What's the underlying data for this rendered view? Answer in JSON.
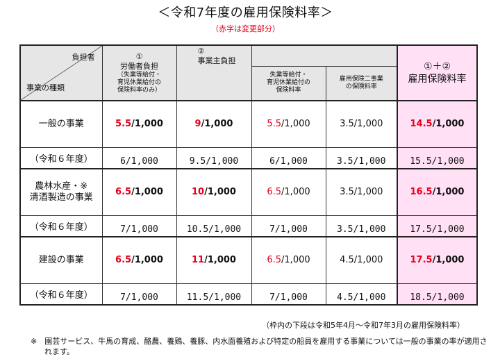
{
  "title": "＜令和7年度の雇用保険料率＞",
  "subtitle": "（赤字は変更部分）",
  "colors": {
    "accent_red": "#e6001c",
    "header_gray": "#e6e6e6",
    "total_pink": "#ffe0f5"
  },
  "header": {
    "corner_top": "負担者",
    "corner_bottom": "事業の種類",
    "worker": {
      "num": "①",
      "label": "労働者負担",
      "note1": "（失業等給付・",
      "note2": "育児休業給付の",
      "note3": "保険料率のみ）"
    },
    "employer": {
      "num": "②",
      "label": "事業主負担"
    },
    "employer_sub1": {
      "line1": "失業等給付・",
      "line2": "育児休業給付の",
      "line3": "保険料率"
    },
    "employer_sub2": {
      "line1": "雇用保険二事業",
      "line2": "の保険料率"
    },
    "total": {
      "num": "①＋②",
      "label": "雇用保険料率"
    }
  },
  "rows": [
    {
      "category": "一般の事業",
      "worker": {
        "red": "5.5",
        "rest": "/1,000"
      },
      "employer": {
        "red": "9",
        "rest": "/1,000"
      },
      "sub1": {
        "red": "5.5",
        "rest": "/1,000"
      },
      "sub2": "3.5/1,000",
      "total": {
        "red": "14.5",
        "rest": "/1,000"
      },
      "prev": {
        "label": "（令和６年度）",
        "worker": "6/1,000",
        "employer": "9.5/1,000",
        "sub1": "6/1,000",
        "sub2": "3.5/1,000",
        "total": "15.5/1,000"
      }
    },
    {
      "category1": "農林水産・※",
      "category2": "清酒製造の事業",
      "worker": {
        "red": "6.5",
        "rest": "/1,000"
      },
      "employer": {
        "red": "10",
        "rest": "/1,000"
      },
      "sub1": {
        "red": "6.5",
        "rest": "/1,000"
      },
      "sub2": "3.5/1,000",
      "total": {
        "red": "16.5",
        "rest": "/1,000"
      },
      "prev": {
        "label": "（令和６年度）",
        "worker": "7/1,000",
        "employer": "10.5/1,000",
        "sub1": "7/1,000",
        "sub2": "3.5/1,000",
        "total": "17.5/1,000"
      }
    },
    {
      "category": "建設の事業",
      "worker": {
        "red": "6.5",
        "rest": "/1,000"
      },
      "employer": {
        "red": "11",
        "rest": "/1,000"
      },
      "sub1": {
        "red": "6.5",
        "rest": "/1,000"
      },
      "sub2": "4.5/1,000",
      "total": {
        "red": "17.5",
        "rest": "/1,000"
      },
      "prev": {
        "label": "（令和６年度）",
        "worker": "7/1,000",
        "employer": "11.5/1,000",
        "sub1": "7/1,000",
        "sub2": "4.5/1,000",
        "total": "18.5/1,000"
      }
    }
  ],
  "note_period": "（枠内の下段は令和5年4月～令和7年3月の雇用保険料率）",
  "note_footnote": "※　園芸サービス、牛馬の育成、酪農、養鶏、養豚、内水面養殖および特定の船員を雇用する事業については一般の事業の率が適用されます。"
}
